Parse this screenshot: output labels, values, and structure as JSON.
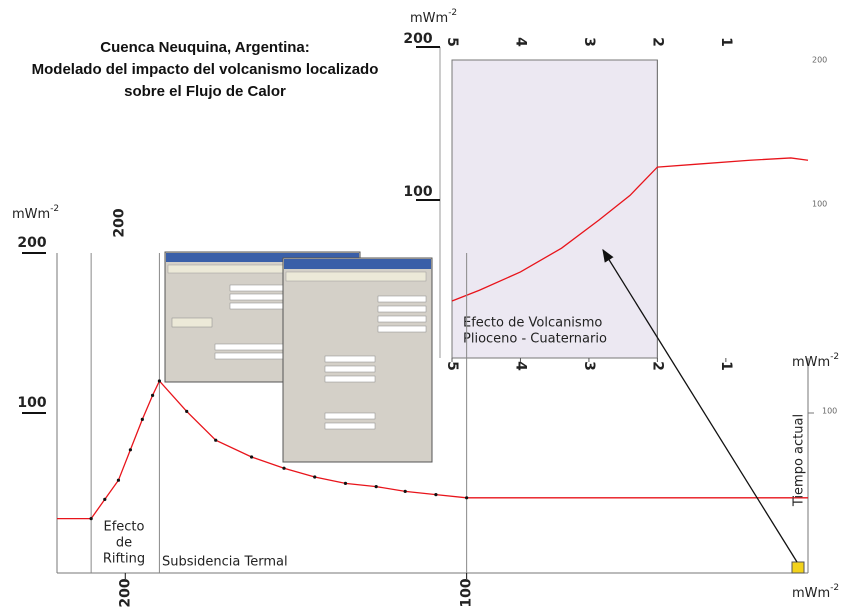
{
  "title_lines": [
    "Cuenca Neuquina, Argentina:",
    "Modelado del impacto del volcanismo localizado",
    "sobre el Flujo de Calor"
  ],
  "chart_data": [
    {
      "type": "line",
      "ylabel": "mWm",
      "ylabel_sup": "-2",
      "y2label": "mWm",
      "y2label_sup": "-2",
      "xlabel": "mWm",
      "xlabel_sup": "-2",
      "xlim": [
        220,
        0
      ],
      "xticks": [
        200,
        100
      ],
      "top_xticks": [
        200
      ],
      "ylim": [
        0,
        200
      ],
      "yticks": [
        100,
        200
      ],
      "y2ticks": [
        100
      ],
      "x": [
        220,
        210,
        206,
        202,
        198.5,
        195,
        192,
        190,
        182,
        173.5,
        163,
        153.5,
        144.5,
        135.5,
        126.5,
        118,
        109,
        100,
        0
      ],
      "series": [
        {
          "color": "#e8141b",
          "values": [
            34,
            34,
            46,
            58,
            77,
            96,
            111,
            120,
            101,
            83,
            72.5,
            65.5,
            60,
            56,
            54,
            51,
            49,
            47,
            47
          ]
        }
      ],
      "markers": true,
      "vlines": [
        210,
        190,
        100
      ],
      "annotations": {
        "rifting": [
          "Efecto",
          "de",
          "Rifting"
        ],
        "subsidence": "Subsidencia Termal",
        "present": "Tiempo actual"
      }
    },
    {
      "type": "line",
      "ylabel": "mWm",
      "ylabel_sup": "-2",
      "xlim": [
        5,
        -0.2
      ],
      "xticks": [
        5,
        4,
        3,
        2,
        1
      ],
      "ylim": [
        0,
        200
      ],
      "yticks": [
        200,
        100
      ],
      "y2ticks": [
        200,
        100
      ],
      "shade_x": [
        5,
        2
      ],
      "vlines": [
        2
      ],
      "x": [
        5,
        4.6,
        4,
        3.4,
        2.85,
        2.4,
        2,
        1.4,
        0.65,
        0.05,
        -0.2
      ],
      "series": [
        {
          "color": "#e8141b",
          "values": [
            34,
            41,
            53,
            68.5,
            87,
            103,
            121.5,
            123.5,
            126,
            127.5,
            126
          ]
        }
      ],
      "annotations": {
        "volcanism": [
          "Efecto de Volcanismo",
          "Plioceno - Cuaternario"
        ]
      }
    }
  ]
}
